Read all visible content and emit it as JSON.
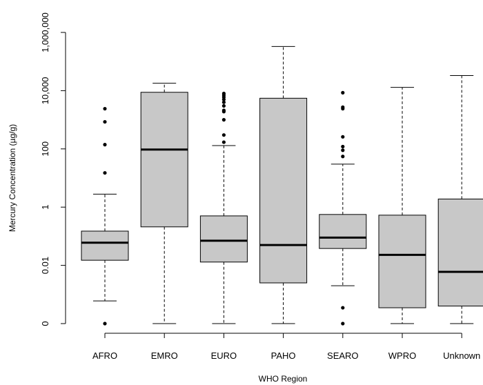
{
  "chart_data": {
    "type": "boxplot",
    "xlabel": "WHO Region",
    "ylabel": "Mercury Concentration (µg/g)",
    "y_scale": "log10",
    "y_ticks": [
      {
        "value": 0.0001,
        "label": "0"
      },
      {
        "value": 0.01,
        "label": "0.01"
      },
      {
        "value": 1,
        "label": "1"
      },
      {
        "value": 100,
        "label": "100"
      },
      {
        "value": 10000,
        "label": "10,000"
      },
      {
        "value": 1000000,
        "label": "1,000,000"
      }
    ],
    "ylim": [
      0.0001,
      1000000
    ],
    "grid": false,
    "colors": {
      "box_fill": "#c8c8c8",
      "stroke": "#000000"
    },
    "categories": [
      "AFRO",
      "EMRO",
      "EURO",
      "PAHO",
      "SEARO",
      "WPRO",
      "Unknown"
    ],
    "boxes": [
      {
        "category": "AFRO",
        "whisker_low": 0.0006,
        "q1": 0.015,
        "median": 0.06,
        "q3": 0.15,
        "whisker_high": 2.8,
        "outliers": [
          0.0001,
          15,
          140,
          850,
          2400
        ]
      },
      {
        "category": "EMRO",
        "whisker_low": 0.0001,
        "q1": 0.21,
        "median": 95,
        "q3": 8800,
        "whisker_high": 18000,
        "outliers": []
      },
      {
        "category": "EURO",
        "whisker_low": 0.0001,
        "q1": 0.013,
        "median": 0.07,
        "q3": 0.5,
        "whisker_high": 130,
        "outliers": [
          170,
          300,
          1000,
          1900,
          2100,
          3000,
          4000,
          5000,
          6000,
          7000,
          8000
        ]
      },
      {
        "category": "PAHO",
        "whisker_low": 0.0001,
        "q1": 0.0025,
        "median": 0.05,
        "q3": 5500,
        "whisker_high": 330000,
        "outliers": []
      },
      {
        "category": "SEARO",
        "whisker_low": 0.002,
        "q1": 0.038,
        "median": 0.09,
        "q3": 0.56,
        "whisker_high": 30,
        "outliers": [
          0.0001,
          0.00035,
          55,
          90,
          120,
          260,
          2400,
          2700,
          8500
        ]
      },
      {
        "category": "WPRO",
        "whisker_low": 0.0001,
        "q1": 0.00035,
        "median": 0.023,
        "q3": 0.53,
        "whisker_high": 13000,
        "outliers": []
      },
      {
        "category": "Unknown",
        "whisker_low": 0.0001,
        "q1": 0.0004,
        "median": 0.006,
        "q3": 1.9,
        "whisker_high": 33000,
        "outliers": []
      }
    ]
  }
}
